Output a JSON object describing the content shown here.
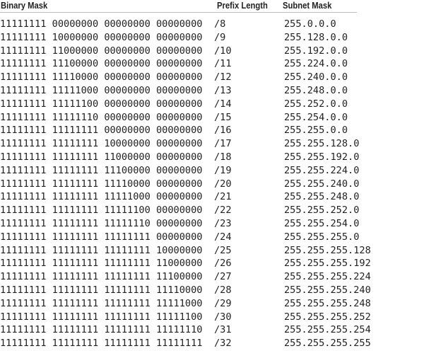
{
  "headers": {
    "binary": "Binary Mask",
    "prefix": "Prefix Length",
    "subnet": "Subnet Mask"
  },
  "rows": [
    [
      "11111111 00000000 00000000 00000000",
      "/8",
      "255.0.0.0"
    ],
    [
      "11111111 10000000 00000000 00000000",
      "/9",
      "255.128.0.0"
    ],
    [
      "11111111 11000000 00000000 00000000",
      "/10",
      "255.192.0.0"
    ],
    [
      "11111111 11100000 00000000 00000000",
      "/11",
      "255.224.0.0"
    ],
    [
      "11111111 11110000 00000000 00000000",
      "/12",
      "255.240.0.0"
    ],
    [
      "11111111 11111000 00000000 00000000",
      "/13",
      "255.248.0.0"
    ],
    [
      "11111111 11111100 00000000 00000000",
      "/14",
      "255.252.0.0"
    ],
    [
      "11111111 11111110 00000000 00000000",
      "/15",
      "255.254.0.0"
    ],
    [
      "11111111 11111111 00000000 00000000",
      "/16",
      "255.255.0.0"
    ],
    [
      "11111111 11111111 10000000 00000000",
      "/17",
      "255.255.128.0"
    ],
    [
      "11111111 11111111 11000000 00000000",
      "/18",
      "255.255.192.0"
    ],
    [
      "11111111 11111111 11100000 00000000",
      "/19",
      "255.255.224.0"
    ],
    [
      "11111111 11111111 11110000 00000000",
      "/20",
      "255.255.240.0"
    ],
    [
      "11111111 11111111 11111000 00000000",
      "/21",
      "255.255.248.0"
    ],
    [
      "11111111 11111111 11111100 00000000",
      "/22",
      "255.255.252.0"
    ],
    [
      "11111111 11111111 11111110 00000000",
      "/23",
      "255.255.254.0"
    ],
    [
      "11111111 11111111 11111111 00000000",
      "/24",
      "255.255.255.0"
    ],
    [
      "11111111 11111111 11111111 10000000",
      "/25",
      "255.255.255.128"
    ],
    [
      "11111111 11111111 11111111 11000000",
      "/26",
      "255.255.255.192"
    ],
    [
      "11111111 11111111 11111111 11100000",
      "/27",
      "255.255.255.224"
    ],
    [
      "11111111 11111111 11111111 11110000",
      "/28",
      "255.255.255.240"
    ],
    [
      "11111111 11111111 11111111 11111000",
      "/29",
      "255.255.255.248"
    ],
    [
      "11111111 11111111 11111111 11111100",
      "/30",
      "255.255.255.252"
    ],
    [
      "11111111 11111111 11111111 11111110",
      "/31",
      "255.255.255.254"
    ],
    [
      "11111111 11111111 11111111 11111111",
      "/32",
      "255.255.255.255"
    ]
  ]
}
